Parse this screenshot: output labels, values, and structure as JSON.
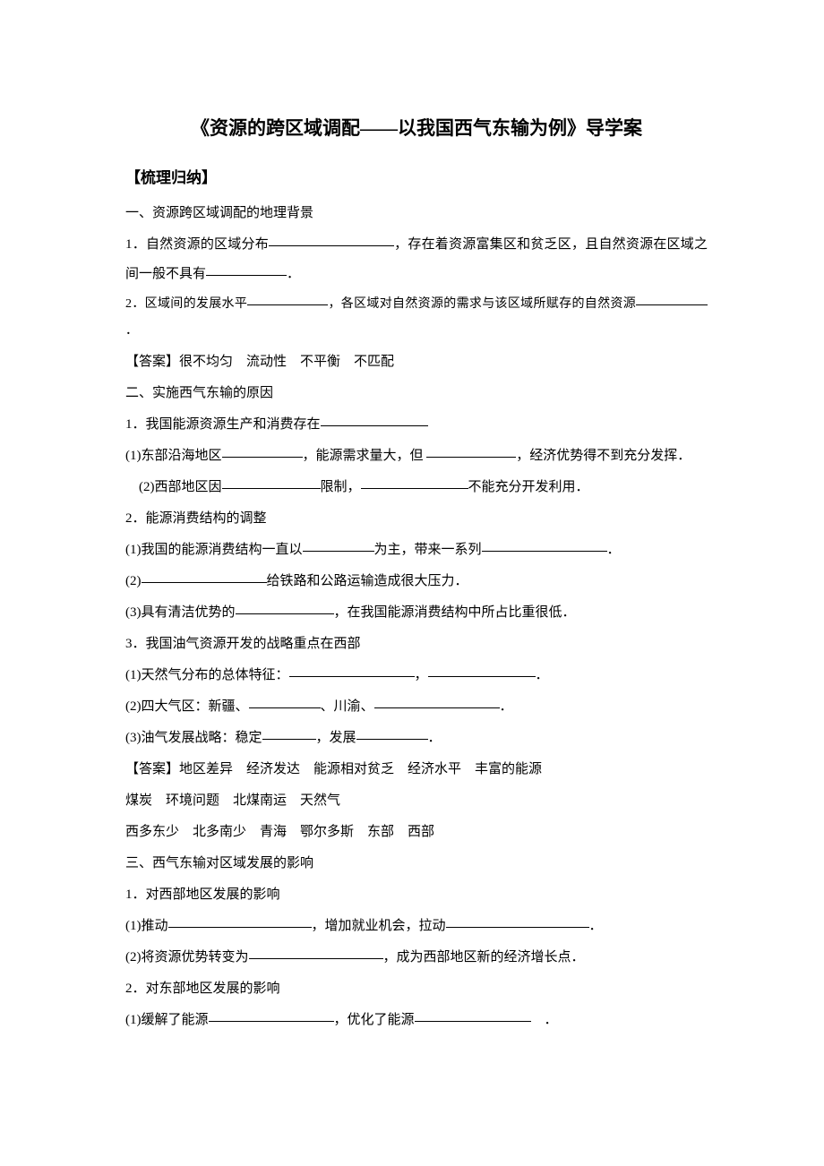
{
  "title": "《资源的跨区域调配——以我国西气东输为例》导学案",
  "section1_header": "【梳理归纳】",
  "s1_h": "一、资源跨区域调配的地理背景",
  "s1_1a": "1．自然资源的区域分布",
  "s1_1b": "，存在着资源富集区和贫乏区，且自然资源在区域之间一般不具有",
  "s1_1c": "．",
  "s1_2a": "2．区域间的发展水平",
  "s1_2b": "，各区域对自然资源的需求与该区域所赋存的自然资源",
  "s1_2c": "．",
  "ans1": "【答案】很不均匀　流动性　不平衡　不匹配",
  "s2_h": "二、实施西气东输的原因",
  "s2_1a": "1．我国能源资源生产和消费存在",
  "s2_1_1a": "(1)东部沿海地区",
  "s2_1_1b": "，能源需求量大，但 ",
  "s2_1_1c": "，经济优势得不到充分发挥．",
  "s2_1_2a": "　(2)西部地区因",
  "s2_1_2b": "限制，",
  "s2_1_2c": "不能充分开发利用．",
  "s2_2h": "2．能源消费结构的调整",
  "s2_2_1a": "(1)我国的能源消费结构一直以",
  "s2_2_1b": "为主，带来一系列",
  "s2_2_1c": "．",
  "s2_2_2a": "(2)",
  "s2_2_2b": "给铁路和公路运输造成很大压力．",
  "s2_2_3a": "(3)具有清洁优势的",
  "s2_2_3b": "，在我国能源消费结构中所占比重很低．",
  "s2_3h": "3．我国油气资源开发的战略重点在西部",
  "s2_3_1a": "(1)天然气分布的总体特征：",
  "s2_3_1b": "，",
  "s2_3_1c": "．",
  "s2_3_2a": "(2)四大气区：新疆、",
  "s2_3_2b": "、川渝、",
  "s2_3_2c": "．",
  "s2_3_3a": "(3)油气发展战略：稳定",
  "s2_3_3b": "，发展",
  "s2_3_3c": "．",
  "ans2_l1": "【答案】地区差异　经济发达　能源相对贫乏　经济水平　丰富的能源",
  "ans2_l2": "煤炭　环境问题　北煤南运　天然气",
  "ans2_l3": "西多东少　北多南少　青海　鄂尔多斯　东部　西部",
  "s3_h": "三、西气东输对区域发展的影响",
  "s3_1h": "1．对西部地区发展的影响",
  "s3_1_1a": "(1)推动",
  "s3_1_1b": "，增加就业机会，拉动",
  "s3_1_1c": "．",
  "s3_1_2a": "(2)将资源优势转变为",
  "s3_1_2b": "，成为西部地区新的经济增长点．",
  "s3_2h": "2．对东部地区发展的影响",
  "s3_2_1a": "(1)缓解了能源",
  "s3_2_1b": "，优化了能源",
  "s3_2_1c": "　．"
}
